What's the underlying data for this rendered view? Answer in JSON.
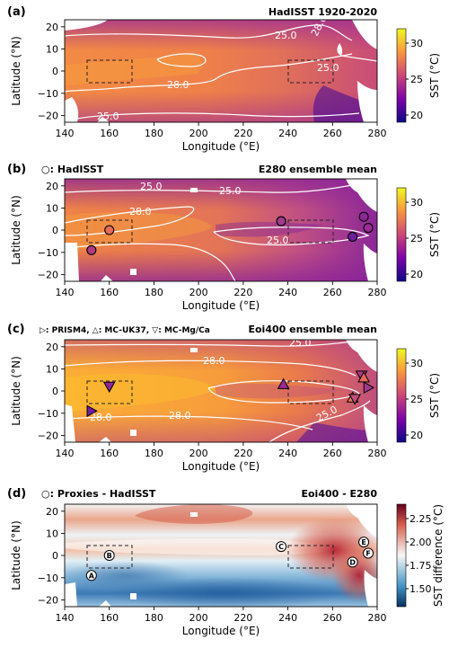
{
  "chart_data": [
    {
      "type": "heatmap",
      "panel_label": "(a)",
      "title": "HadISST 1920-2020",
      "xlabel": "Longitude (°E)",
      "ylabel": "Latitude (°N)",
      "xlim": [
        140,
        280
      ],
      "ylim": [
        -23,
        23
      ],
      "xticks": [
        "140",
        "160",
        "180",
        "200",
        "220",
        "240",
        "260",
        "280"
      ],
      "yticks": [
        "20",
        "10",
        "0",
        "−10",
        "−20"
      ],
      "colorbar": {
        "label": "SST (°C)",
        "range": [
          19,
          32
        ],
        "ticks": [
          "30",
          "25",
          "20"
        ]
      },
      "contour_labels": [
        "25.0",
        "28.0",
        "25.0",
        "28.0",
        "25.0"
      ],
      "boxes": [
        {
          "lon": [
            150,
            170
          ],
          "lat": [
            -5,
            5
          ]
        },
        {
          "lon": [
            240,
            260
          ],
          "lat": [
            -5,
            5
          ]
        }
      ]
    },
    {
      "type": "heatmap",
      "panel_label": "(b)",
      "title": "E280 ensemble mean",
      "legend": "○: HadISST",
      "xlabel": "Longitude (°E)",
      "ylabel": "Latitude (°N)",
      "xlim": [
        140,
        280
      ],
      "ylim": [
        -23,
        23
      ],
      "xticks": [
        "140",
        "160",
        "180",
        "200",
        "220",
        "240",
        "260",
        "280"
      ],
      "yticks": [
        "20",
        "10",
        "0",
        "−10",
        "−20"
      ],
      "colorbar": {
        "label": "SST (°C)",
        "range": [
          19,
          32
        ],
        "ticks": [
          "30",
          "25",
          "20"
        ]
      },
      "contour_labels": [
        "25.0",
        "25.0",
        "28.0",
        "25.0"
      ],
      "markers": [
        {
          "lon": 152,
          "lat": -9,
          "symbol": "circle"
        },
        {
          "lon": 160,
          "lat": 0,
          "symbol": "circle"
        },
        {
          "lon": 237,
          "lat": 4,
          "symbol": "circle"
        },
        {
          "lon": 269,
          "lat": -3,
          "symbol": "circle"
        },
        {
          "lon": 274,
          "lat": 6,
          "symbol": "circle"
        },
        {
          "lon": 276,
          "lat": 1,
          "symbol": "circle"
        }
      ],
      "boxes": [
        {
          "lon": [
            150,
            170
          ],
          "lat": [
            -5,
            5
          ]
        },
        {
          "lon": [
            240,
            260
          ],
          "lat": [
            -5,
            5
          ]
        }
      ]
    },
    {
      "type": "heatmap",
      "panel_label": "(c)",
      "title": "Eoi400 ensemble mean",
      "legend": "▷: PRISM4, △: MC-UK37, ▽: MC-Mg/Ca",
      "xlabel": "Longitude (°E)",
      "ylabel": "Latitude (°N)",
      "xlim": [
        140,
        280
      ],
      "ylim": [
        -23,
        23
      ],
      "xticks": [
        "140",
        "160",
        "180",
        "200",
        "220",
        "240",
        "260",
        "280"
      ],
      "yticks": [
        "20",
        "10",
        "0",
        "−10",
        "−20"
      ],
      "colorbar": {
        "label": "SST (°C)",
        "range": [
          19,
          32
        ],
        "ticks": [
          "30",
          "25",
          "20"
        ]
      },
      "contour_labels": [
        "25.0",
        "28.0",
        "28.0",
        "28.0",
        "25.0"
      ],
      "markers": [
        {
          "lon": 152,
          "lat": -9,
          "symbol": "triangle-right"
        },
        {
          "lon": 160,
          "lat": 2,
          "symbol": "triangle-down"
        },
        {
          "lon": 238,
          "lat": 3,
          "symbol": "triangle-up"
        },
        {
          "lon": 269,
          "lat": -3,
          "symbol": "triangle-up"
        },
        {
          "lon": 270,
          "lat": -3.5,
          "symbol": "triangle-down"
        },
        {
          "lon": 273,
          "lat": 7,
          "symbol": "triangle-down"
        },
        {
          "lon": 274,
          "lat": 6,
          "symbol": "triangle-up"
        },
        {
          "lon": 276,
          "lat": 1.5,
          "symbol": "triangle-right"
        }
      ],
      "boxes": [
        {
          "lon": [
            150,
            170
          ],
          "lat": [
            -5,
            5
          ]
        },
        {
          "lon": [
            240,
            260
          ],
          "lat": [
            -5,
            5
          ]
        }
      ]
    },
    {
      "type": "heatmap",
      "panel_label": "(d)",
      "title": "Eoi400 - E280",
      "legend": "○: Proxies - HadISST",
      "xlabel": "Longitude (°E)",
      "ylabel": "Latitude (°N)",
      "xlim": [
        140,
        280
      ],
      "ylim": [
        -23,
        23
      ],
      "xticks": [
        "140",
        "160",
        "180",
        "200",
        "220",
        "240",
        "260",
        "280"
      ],
      "yticks": [
        "20",
        "10",
        "0",
        "−10",
        "−20"
      ],
      "colorbar": {
        "label": "SST difference (°C)",
        "range": [
          1.35,
          2.45
        ],
        "ticks": [
          "2.25",
          "2.00",
          "1.75",
          "1.50"
        ]
      },
      "markers": [
        {
          "lon": 152,
          "lat": -9,
          "label": "A"
        },
        {
          "lon": 160,
          "lat": 0,
          "label": "B"
        },
        {
          "lon": 237,
          "lat": 4,
          "label": "C"
        },
        {
          "lon": 269,
          "lat": -3,
          "label": "D"
        },
        {
          "lon": 274,
          "lat": 6,
          "label": "E"
        },
        {
          "lon": 276,
          "lat": 1,
          "label": "F"
        }
      ],
      "boxes": [
        {
          "lon": [
            150,
            170
          ],
          "lat": [
            -5,
            5
          ]
        },
        {
          "lon": [
            240,
            260
          ],
          "lat": [
            -5,
            5
          ]
        }
      ]
    }
  ]
}
